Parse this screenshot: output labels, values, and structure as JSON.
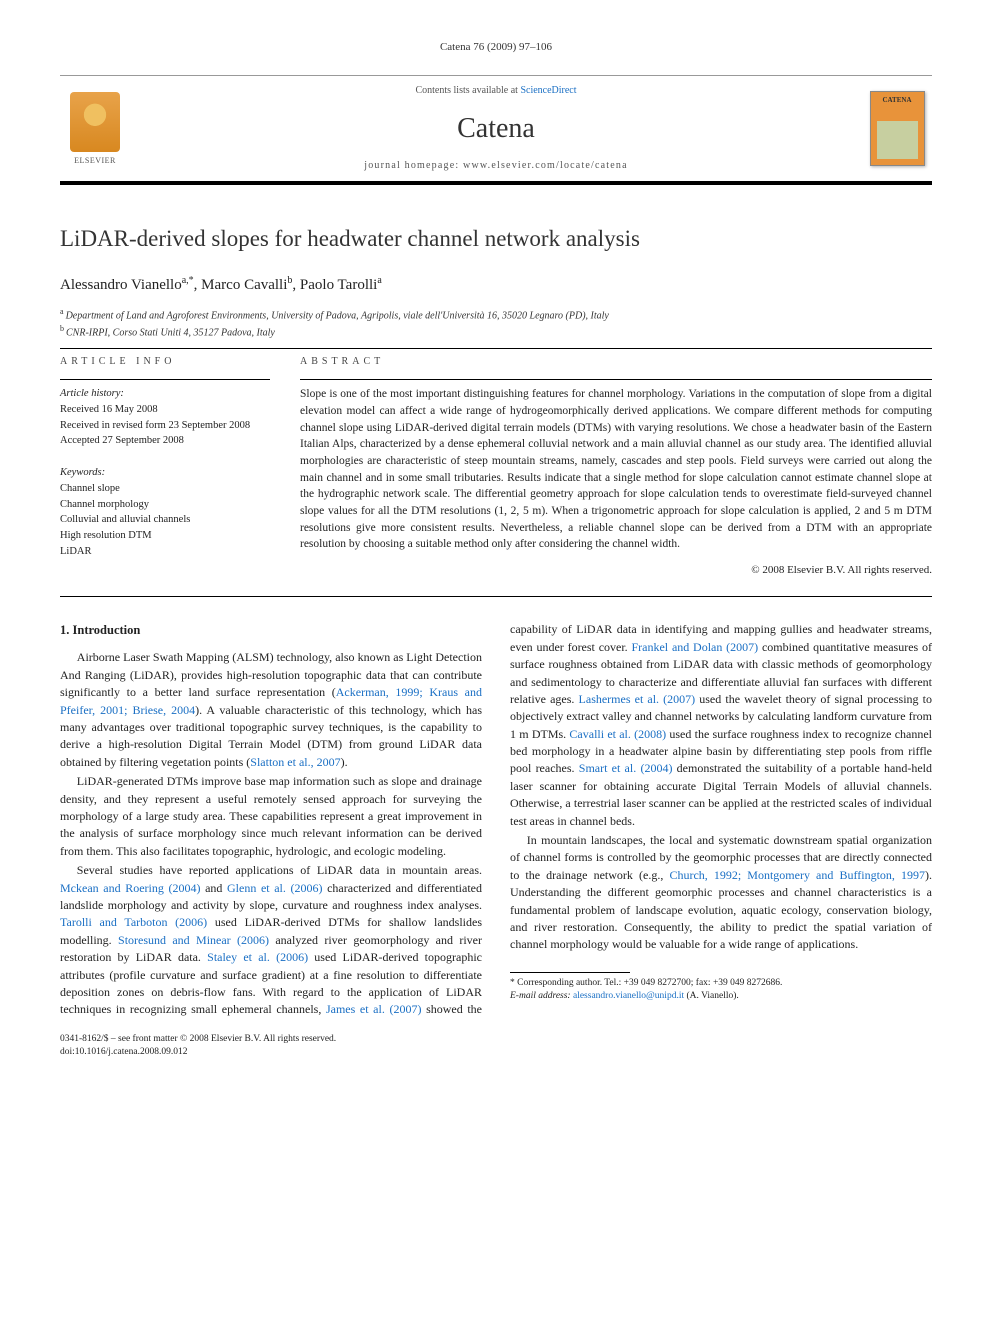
{
  "header": {
    "citation": "Catena 76 (2009) 97–106",
    "contents_prefix": "Contents lists available at ",
    "contents_link": "ScienceDirect",
    "journal": "Catena",
    "homepage_prefix": "journal homepage: ",
    "homepage_url": "www.elsevier.com/locate/catena",
    "publisher_label": "ELSEVIER",
    "cover_label": "CATENA"
  },
  "article": {
    "title": "LiDAR-derived slopes for headwater channel network analysis",
    "authors_html": "Alessandro Vianello",
    "author1": "Alessandro Vianello",
    "author1_sup": "a,",
    "author1_star": "*",
    "author2": ", Marco Cavalli",
    "author2_sup": "b",
    "author3": ", Paolo Tarolli",
    "author3_sup": "a",
    "aff_a": "Department of Land and Agroforest Environments, University of Padova, Agripolis, viale dell'Università 16, 35020 Legnaro (PD), Italy",
    "aff_b": "CNR-IRPI, Corso Stati Uniti 4, 35127 Padova, Italy"
  },
  "info": {
    "heading": "article info",
    "history_label": "Article history:",
    "received": "Received 16 May 2008",
    "revised": "Received in revised form 23 September 2008",
    "accepted": "Accepted 27 September 2008",
    "keywords_label": "Keywords:",
    "kw1": "Channel slope",
    "kw2": "Channel morphology",
    "kw3": "Colluvial and alluvial channels",
    "kw4": "High resolution DTM",
    "kw5": "LiDAR"
  },
  "abstract": {
    "heading": "abstract",
    "text": "Slope is one of the most important distinguishing features for channel morphology. Variations in the computation of slope from a digital elevation model can affect a wide range of hydrogeomorphically derived applications. We compare different methods for computing channel slope using LiDAR-derived digital terrain models (DTMs) with varying resolutions. We chose a headwater basin of the Eastern Italian Alps, characterized by a dense ephemeral colluvial network and a main alluvial channel as our study area. The identified alluvial morphologies are characteristic of steep mountain streams, namely, cascades and step pools. Field surveys were carried out along the main channel and in some small tributaries. Results indicate that a single method for slope calculation cannot estimate channel slope at the hydrographic network scale. The differential geometry approach for slope calculation tends to overestimate field-surveyed channel slope values for all the DTM resolutions (1, 2, 5 m). When a trigonometric approach for slope calculation is applied, 2 and 5 m DTM resolutions give more consistent results. Nevertheless, a reliable channel slope can be derived from a DTM with an appropriate resolution by choosing a suitable method only after considering the channel width.",
    "copyright": "© 2008 Elsevier B.V. All rights reserved."
  },
  "body": {
    "section1_heading": "1. Introduction",
    "p1a": "Airborne Laser Swath Mapping (ALSM) technology, also known as Light Detection And Ranging (LiDAR), provides high-resolution topographic data that can contribute significantly to a better land surface representation (",
    "p1_ref1": "Ackerman, 1999; Kraus and Pfeifer, 2001; Briese, 2004",
    "p1b": "). A valuable characteristic of this technology, which has many advantages over traditional topographic survey techniques, is the capability to derive a high-resolution Digital Terrain Model (DTM) from ground LiDAR data obtained by filtering vegetation points (",
    "p1_ref2": "Slatton et al., 2007",
    "p1c": ").",
    "p2": "LiDAR-generated DTMs improve base map information such as slope and drainage density, and they represent a useful remotely sensed approach for surveying the morphology of a large study area. These capabilities represent a great improvement in the analysis of surface morphology since much relevant information can be derived from them. This also facilitates topographic, hydrologic, and ecologic modeling.",
    "p3a": "Several studies have reported applications of LiDAR data in mountain areas. ",
    "p3_ref1": "Mckean and Roering (2004)",
    "p3b": " and ",
    "p3_ref2": "Glenn et al. (2006)",
    "p3c": " characterized and differentiated landslide morphology and activity by slope, curvature and roughness index analyses. ",
    "p3_ref3": "Tarolli and Tarboton (2006)",
    "p3d": " used LiDAR-derived DTMs for shallow landslides modelling. ",
    "p3_ref4": "Storesund and Minear (2006)",
    "p3e": " analyzed river geomorphology and river restoration by LiDAR data. ",
    "p3_ref5": "Staley et al. (2006)",
    "p3f": " used LiDAR-derived topographic attributes (profile curvature and surface gradient) at a fine resolution to differentiate deposition zones on debris-flow fans. With regard to the application of LiDAR techniques in recognizing small ephemeral channels, ",
    "p3_ref6": "James et al. (2007)",
    "p3g": " showed the capability of LiDAR data in identifying and mapping gullies and headwater streams, even under forest cover. ",
    "p3_ref7": "Frankel and Dolan (2007)",
    "p3h": " combined quantitative measures of surface roughness obtained from LiDAR data with classic methods of geomorphology and sedimentology to characterize and differentiate alluvial fan surfaces with different relative ages. ",
    "p3_ref8": "Lashermes et al. (2007)",
    "p3i": " used the wavelet theory of signal processing to objectively extract valley and channel networks by calculating landform curvature from 1 m DTMs. ",
    "p3_ref9": "Cavalli et al. (2008)",
    "p3j": " used the surface roughness index to recognize channel bed morphology in a headwater alpine basin by differentiating step pools from riffle pool reaches. ",
    "p3_ref10": "Smart et al. (2004)",
    "p3k": " demonstrated the suitability of a portable hand-held laser scanner for obtaining accurate Digital Terrain Models of alluvial channels. Otherwise, a terrestrial laser scanner can be applied at the restricted scales of individual test areas in channel beds.",
    "p4a": "In mountain landscapes, the local and systematic downstream spatial organization of channel forms is controlled by the geomorphic processes that are directly connected to the drainage network (e.g., ",
    "p4_ref1": "Church, 1992; Montgomery and Buffington, 1997",
    "p4b": "). Understanding the different geomorphic processes and channel characteristics is a fundamental problem of landscape evolution, aquatic ecology, conservation biology, and river restoration. Consequently, the ability to predict the spatial variation of channel morphology would be valuable for a wide range of applications."
  },
  "footnote": {
    "corr_label": "* Corresponding author. Tel.: +39 049 8272700; fax: +39 049 8272686.",
    "email_label": "E-mail address:",
    "email": "alessandro.vianello@unipd.it",
    "email_owner": "(A. Vianello)."
  },
  "footer": {
    "line1": "0341-8162/$ – see front matter © 2008 Elsevier B.V. All rights reserved.",
    "line2": "doi:10.1016/j.catena.2008.09.012"
  },
  "colors": {
    "link": "#1a6fc4",
    "orange": "#e8933a"
  }
}
